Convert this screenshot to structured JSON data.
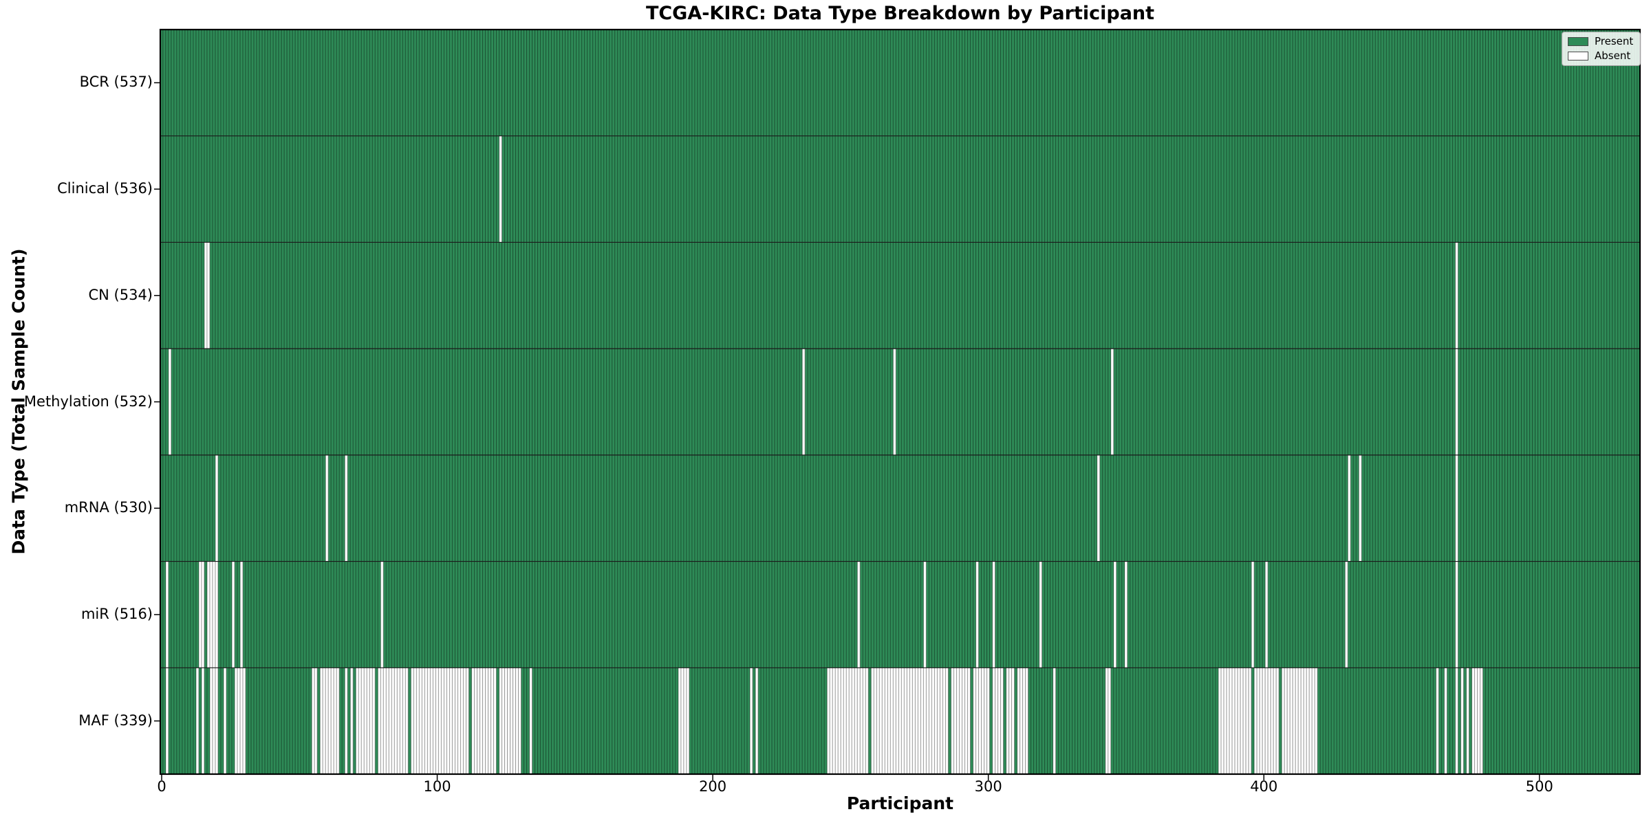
{
  "chart_data": {
    "type": "heatmap",
    "title": "TCGA-KIRC: Data Type Breakdown by Participant",
    "xlabel": "Participant",
    "ylabel": "Data Type (Total Sample Count)",
    "n_participants": 537,
    "xlim": [
      -0.5,
      536.5
    ],
    "x_ticks": [
      0,
      100,
      200,
      300,
      400,
      500
    ],
    "grid": false,
    "legend_position": "upper right",
    "legend": {
      "present_label": "Present",
      "absent_label": "Absent"
    },
    "colors": {
      "present": "#2e8b57",
      "absent": "#ffffff",
      "cell_edge": "rgba(0,0,0,0.42)",
      "row_divider": "#1a1a1a",
      "spine": "#000000",
      "text": "#000000"
    },
    "rows": [
      {
        "label": "BCR (537)",
        "data_type": "BCR",
        "present_count": 537,
        "absent_ranges": []
      },
      {
        "label": "Clinical (536)",
        "data_type": "Clinical",
        "present_count": 536,
        "absent_ranges": [
          [
            123,
            123
          ]
        ]
      },
      {
        "label": "CN (534)",
        "data_type": "CN",
        "present_count": 534,
        "absent_ranges": [
          [
            16,
            17
          ],
          [
            470,
            470
          ]
        ]
      },
      {
        "label": "Methylation (532)",
        "data_type": "Methylation",
        "present_count": 532,
        "absent_ranges": [
          [
            3,
            3
          ],
          [
            233,
            233
          ],
          [
            266,
            266
          ],
          [
            345,
            345
          ],
          [
            470,
            470
          ]
        ]
      },
      {
        "label": "mRNA (530)",
        "data_type": "mRNA",
        "present_count": 530,
        "absent_ranges": [
          [
            20,
            20
          ],
          [
            60,
            60
          ],
          [
            67,
            67
          ],
          [
            340,
            340
          ],
          [
            431,
            431
          ],
          [
            435,
            435
          ],
          [
            470,
            470
          ]
        ]
      },
      {
        "label": "miR (516)",
        "data_type": "miR",
        "present_count": 516,
        "absent_ranges": [
          [
            2,
            2
          ],
          [
            14,
            15
          ],
          [
            17,
            20
          ],
          [
            26,
            26
          ],
          [
            29,
            29
          ],
          [
            80,
            80
          ],
          [
            253,
            253
          ],
          [
            277,
            277
          ],
          [
            296,
            296
          ],
          [
            302,
            302
          ],
          [
            319,
            319
          ],
          [
            346,
            346
          ],
          [
            350,
            350
          ],
          [
            396,
            396
          ],
          [
            401,
            401
          ],
          [
            430,
            430
          ],
          [
            470,
            470
          ]
        ]
      },
      {
        "label": "MAF (339)",
        "data_type": "MAF",
        "present_count": 339,
        "absent_ranges": [
          [
            2,
            2
          ],
          [
            13,
            13
          ],
          [
            15,
            15
          ],
          [
            18,
            20
          ],
          [
            23,
            23
          ],
          [
            27,
            30
          ],
          [
            55,
            56
          ],
          [
            58,
            64
          ],
          [
            67,
            67
          ],
          [
            69,
            69
          ],
          [
            71,
            77
          ],
          [
            79,
            89
          ],
          [
            91,
            111
          ],
          [
            113,
            121
          ],
          [
            123,
            130
          ],
          [
            134,
            134
          ],
          [
            188,
            191
          ],
          [
            214,
            214
          ],
          [
            216,
            216
          ],
          [
            242,
            256
          ],
          [
            258,
            285
          ],
          [
            287,
            293
          ],
          [
            295,
            300
          ],
          [
            302,
            305
          ],
          [
            307,
            309
          ],
          [
            311,
            314
          ],
          [
            324,
            324
          ],
          [
            343,
            344
          ],
          [
            384,
            395
          ],
          [
            397,
            405
          ],
          [
            407,
            419
          ],
          [
            463,
            463
          ],
          [
            466,
            466
          ],
          [
            470,
            470
          ],
          [
            472,
            472
          ],
          [
            474,
            474
          ],
          [
            476,
            479
          ]
        ]
      }
    ]
  }
}
